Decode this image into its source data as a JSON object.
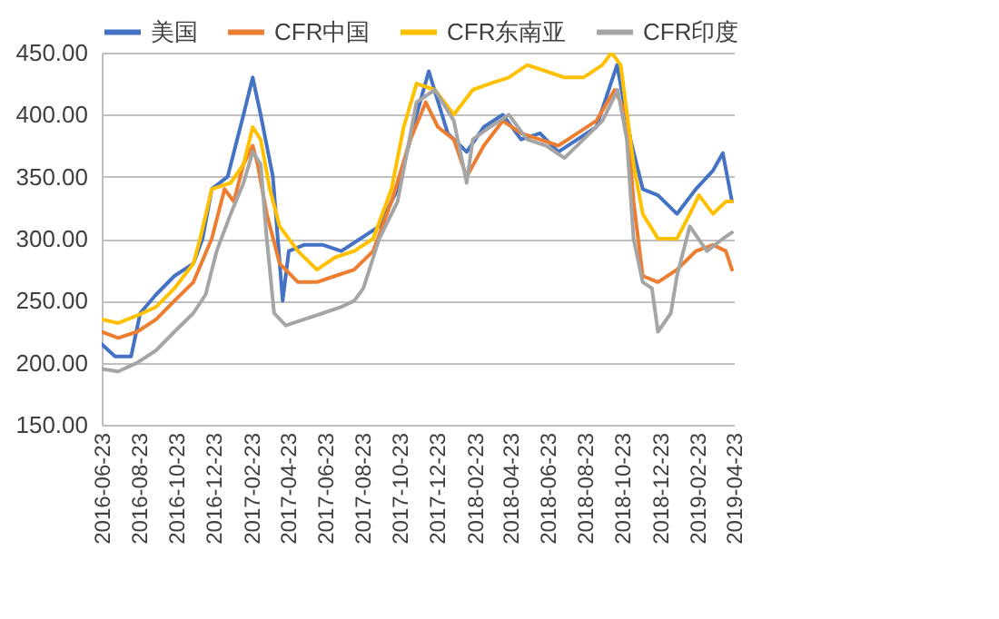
{
  "chart_data": {
    "type": "line",
    "xlim": [
      "2016-06-23",
      "2019-04-23"
    ],
    "xticks": [
      "2016-06-23",
      "2016-08-23",
      "2016-10-23",
      "2016-12-23",
      "2017-02-23",
      "2017-04-23",
      "2017-06-23",
      "2017-08-23",
      "2017-10-23",
      "2017-12-23",
      "2018-02-23",
      "2018-04-23",
      "2018-06-23",
      "2018-08-23",
      "2018-10-23",
      "2018-12-23",
      "2019-02-23",
      "2019-04-23"
    ],
    "ylim": [
      150,
      450
    ],
    "yticks": [
      {
        "value": 150,
        "label": "150.00"
      },
      {
        "value": 200,
        "label": "200.00"
      },
      {
        "value": 250,
        "label": "250.00"
      },
      {
        "value": 300,
        "label": "300.00"
      },
      {
        "value": 350,
        "label": "350.00"
      },
      {
        "value": 400,
        "label": "400.00"
      },
      {
        "value": 450,
        "label": "450.00"
      }
    ],
    "grid": "y",
    "legend": "top",
    "line_style": "solid",
    "marker": "none",
    "series": [
      {
        "name": "美国",
        "color": "#4472c4",
        "x": [
          "2016-06-23",
          "2016-07-15",
          "2016-08-10",
          "2016-08-25",
          "2016-09-20",
          "2016-10-20",
          "2016-11-20",
          "2016-12-05",
          "2016-12-20",
          "2017-01-15",
          "2017-02-10",
          "2017-02-25",
          "2017-03-10",
          "2017-03-30",
          "2017-04-15",
          "2017-04-25",
          "2017-05-20",
          "2017-06-20",
          "2017-07-20",
          "2017-08-20",
          "2017-09-20",
          "2017-10-20",
          "2017-11-20",
          "2017-12-10",
          "2018-01-10",
          "2018-02-10",
          "2018-03-10",
          "2018-04-10",
          "2018-05-10",
          "2018-06-10",
          "2018-07-10",
          "2018-08-10",
          "2018-09-10",
          "2018-10-14",
          "2018-11-05",
          "2018-11-25",
          "2018-12-20",
          "2019-01-20",
          "2019-02-20",
          "2019-03-20",
          "2019-04-05",
          "2019-04-20"
        ],
        "values": [
          215,
          205,
          205,
          240,
          255,
          270,
          280,
          300,
          340,
          350,
          400,
          430,
          400,
          350,
          250,
          290,
          295,
          295,
          290,
          300,
          310,
          340,
          400,
          435,
          385,
          370,
          390,
          400,
          380,
          385,
          370,
          380,
          390,
          440,
          380,
          340,
          335,
          320,
          340,
          355,
          369,
          330
        ]
      },
      {
        "name": "CFR中国",
        "color": "#ed7d31",
        "x": [
          "2016-06-23",
          "2016-07-20",
          "2016-08-20",
          "2016-09-20",
          "2016-10-20",
          "2016-11-20",
          "2016-12-20",
          "2017-01-10",
          "2017-01-25",
          "2017-02-10",
          "2017-02-25",
          "2017-03-05",
          "2017-03-20",
          "2017-04-10",
          "2017-05-10",
          "2017-06-10",
          "2017-07-10",
          "2017-08-10",
          "2017-09-10",
          "2017-10-10",
          "2017-11-10",
          "2017-12-05",
          "2017-12-25",
          "2018-01-20",
          "2018-02-10",
          "2018-03-10",
          "2018-04-10",
          "2018-05-10",
          "2018-06-10",
          "2018-07-10",
          "2018-08-10",
          "2018-09-10",
          "2018-10-10",
          "2018-10-30",
          "2018-11-10",
          "2018-11-25",
          "2018-12-20",
          "2019-01-20",
          "2019-02-20",
          "2019-03-20",
          "2019-04-10",
          "2019-04-20"
        ],
        "values": [
          225,
          220,
          225,
          235,
          250,
          265,
          300,
          340,
          330,
          360,
          375,
          360,
          320,
          280,
          265,
          265,
          270,
          275,
          290,
          330,
          380,
          410,
          390,
          380,
          350,
          375,
          395,
          385,
          380,
          375,
          385,
          395,
          420,
          400,
          330,
          270,
          265,
          275,
          290,
          295,
          290,
          275
        ]
      },
      {
        "name": "CFR东南亚",
        "color": "#ffc000",
        "x": [
          "2016-06-23",
          "2016-07-20",
          "2016-08-20",
          "2016-09-20",
          "2016-10-20",
          "2016-11-20",
          "2016-12-01",
          "2016-12-20",
          "2017-01-20",
          "2017-02-10",
          "2017-02-25",
          "2017-03-10",
          "2017-03-25",
          "2017-04-10",
          "2017-05-10",
          "2017-06-10",
          "2017-07-10",
          "2017-08-10",
          "2017-09-10",
          "2017-10-10",
          "2017-10-30",
          "2017-11-20",
          "2017-12-20",
          "2018-01-20",
          "2018-02-20",
          "2018-03-20",
          "2018-04-20",
          "2018-05-20",
          "2018-06-20",
          "2018-07-20",
          "2018-08-20",
          "2018-09-20",
          "2018-10-05",
          "2018-10-20",
          "2018-11-10",
          "2018-11-25",
          "2018-12-20",
          "2019-01-20",
          "2019-02-10",
          "2019-02-25",
          "2019-03-20",
          "2019-04-10",
          "2019-04-20"
        ],
        "values": [
          235,
          232,
          238,
          245,
          260,
          280,
          300,
          340,
          345,
          360,
          390,
          380,
          340,
          310,
          290,
          275,
          285,
          290,
          300,
          340,
          390,
          425,
          420,
          400,
          420,
          425,
          430,
          440,
          435,
          430,
          430,
          440,
          450,
          440,
          360,
          320,
          300,
          300,
          320,
          335,
          320,
          330,
          330
        ]
      },
      {
        "name": "CFR印度",
        "color": "#a5a5a5",
        "x": [
          "2016-06-23",
          "2016-07-20",
          "2016-08-20",
          "2016-09-20",
          "2016-10-20",
          "2016-11-20",
          "2016-12-10",
          "2016-12-28",
          "2017-01-20",
          "2017-02-10",
          "2017-02-25",
          "2017-03-10",
          "2017-03-20",
          "2017-04-01",
          "2017-04-20",
          "2017-05-20",
          "2017-06-20",
          "2017-07-20",
          "2017-08-10",
          "2017-08-25",
          "2017-09-20",
          "2017-10-20",
          "2017-11-20",
          "2017-12-20",
          "2018-01-20",
          "2018-02-10",
          "2018-02-20",
          "2018-03-20",
          "2018-04-20",
          "2018-05-20",
          "2018-06-20",
          "2018-07-20",
          "2018-08-20",
          "2018-09-20",
          "2018-10-15",
          "2018-10-30",
          "2018-11-10",
          "2018-11-25",
          "2018-12-10",
          "2018-12-20",
          "2019-01-10",
          "2019-01-20",
          "2019-02-10",
          "2019-03-10",
          "2019-04-05",
          "2019-04-20"
        ],
        "values": [
          195,
          193,
          200,
          210,
          225,
          240,
          255,
          290,
          320,
          345,
          370,
          360,
          300,
          240,
          230,
          235,
          240,
          245,
          250,
          260,
          300,
          330,
          410,
          420,
          395,
          345,
          380,
          390,
          400,
          380,
          375,
          365,
          380,
          395,
          420,
          380,
          300,
          265,
          260,
          225,
          240,
          270,
          310,
          290,
          300,
          305
        ]
      }
    ]
  }
}
